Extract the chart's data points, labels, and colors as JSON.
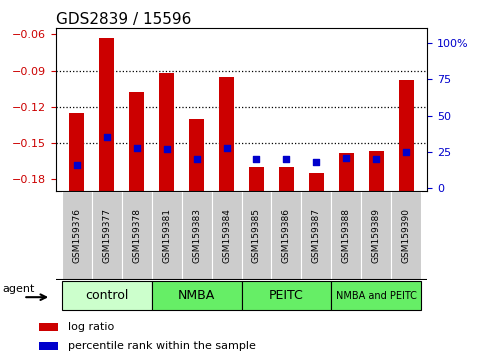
{
  "title": "GDS2839 / 15596",
  "samples": [
    "GSM159376",
    "GSM159377",
    "GSM159378",
    "GSM159381",
    "GSM159383",
    "GSM159384",
    "GSM159385",
    "GSM159386",
    "GSM159387",
    "GSM159388",
    "GSM159389",
    "GSM159390"
  ],
  "log_ratio": [
    -0.125,
    -0.063,
    -0.108,
    -0.092,
    -0.13,
    -0.095,
    -0.17,
    -0.17,
    -0.175,
    -0.158,
    -0.157,
    -0.098
  ],
  "percentile_rank": [
    16,
    35,
    28,
    27,
    20,
    28,
    20,
    20,
    18,
    21,
    20,
    25
  ],
  "ylim_left": [
    -0.19,
    -0.055
  ],
  "yticks_left": [
    -0.18,
    -0.15,
    -0.12,
    -0.09,
    -0.06
  ],
  "ylim_right": [
    -2.0,
    110.0
  ],
  "yticks_right": [
    0,
    25,
    50,
    75,
    100
  ],
  "group_labels": [
    "control",
    "NMBA",
    "PEITC",
    "NMBA and PEITC"
  ],
  "group_starts": [
    0,
    3,
    6,
    9
  ],
  "group_ends": [
    3,
    6,
    9,
    12
  ],
  "group_colors": [
    "#ccffcc",
    "#66ee66",
    "#66ee66",
    "#66ee66"
  ],
  "bar_color": "#cc0000",
  "dot_color": "#0000cc",
  "bar_width": 0.5,
  "title_fontsize": 11,
  "tick_fontsize": 8,
  "xlabel_color": "#cc0000",
  "right_axis_color": "#0000cc",
  "legend_items": [
    "log ratio",
    "percentile rank within the sample"
  ],
  "legend_colors": [
    "#cc0000",
    "#0000cc"
  ],
  "agent_label": "agent",
  "sample_bg_color": "#cccccc",
  "gridline_ticks": [
    -0.09,
    -0.12,
    -0.15
  ]
}
